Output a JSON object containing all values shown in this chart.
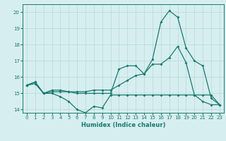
{
  "xlabel": "Humidex (Indice chaleur)",
  "xlim": [
    -0.5,
    23.5
  ],
  "ylim": [
    13.8,
    20.5
  ],
  "yticks": [
    14,
    15,
    16,
    17,
    18,
    19,
    20
  ],
  "xticks": [
    0,
    1,
    2,
    3,
    4,
    5,
    6,
    7,
    8,
    9,
    10,
    11,
    12,
    13,
    14,
    15,
    16,
    17,
    18,
    19,
    20,
    21,
    22,
    23
  ],
  "bg_color": "#d6eef0",
  "grid_color": "#b8d8d8",
  "line_color": "#1a7a6e",
  "line1_x": [
    0,
    1,
    2,
    3,
    4,
    5,
    6,
    7,
    8,
    9,
    10,
    11,
    12,
    13,
    14,
    15,
    16,
    17,
    18,
    19,
    20,
    21,
    22,
    23
  ],
  "line1_y": [
    15.5,
    15.7,
    15.0,
    15.0,
    14.8,
    14.5,
    14.0,
    13.8,
    14.2,
    14.1,
    14.9,
    14.9,
    14.9,
    14.9,
    14.9,
    14.9,
    14.9,
    14.9,
    14.9,
    14.9,
    14.9,
    14.9,
    14.9,
    14.3
  ],
  "line2_x": [
    0,
    1,
    2,
    3,
    4,
    5,
    6,
    7,
    8,
    9,
    10,
    11,
    12,
    13,
    14,
    15,
    16,
    17,
    18,
    19,
    20,
    21,
    22,
    23
  ],
  "line2_y": [
    15.5,
    15.6,
    15.0,
    15.1,
    15.1,
    15.1,
    15.1,
    15.1,
    15.2,
    15.2,
    15.2,
    15.5,
    15.8,
    16.1,
    16.2,
    16.8,
    16.8,
    17.2,
    17.9,
    16.9,
    14.9,
    14.5,
    14.3,
    14.3
  ],
  "line3_x": [
    0,
    1,
    2,
    3,
    4,
    5,
    6,
    7,
    8,
    9,
    10,
    11,
    12,
    13,
    14,
    15,
    16,
    17,
    18,
    19,
    20,
    21,
    22,
    23
  ],
  "line3_y": [
    15.5,
    15.7,
    15.0,
    15.2,
    15.2,
    15.1,
    15.0,
    15.0,
    15.0,
    15.0,
    15.0,
    16.5,
    16.7,
    16.7,
    16.2,
    17.1,
    19.4,
    20.1,
    19.7,
    17.8,
    17.0,
    16.7,
    14.7,
    14.3
  ]
}
